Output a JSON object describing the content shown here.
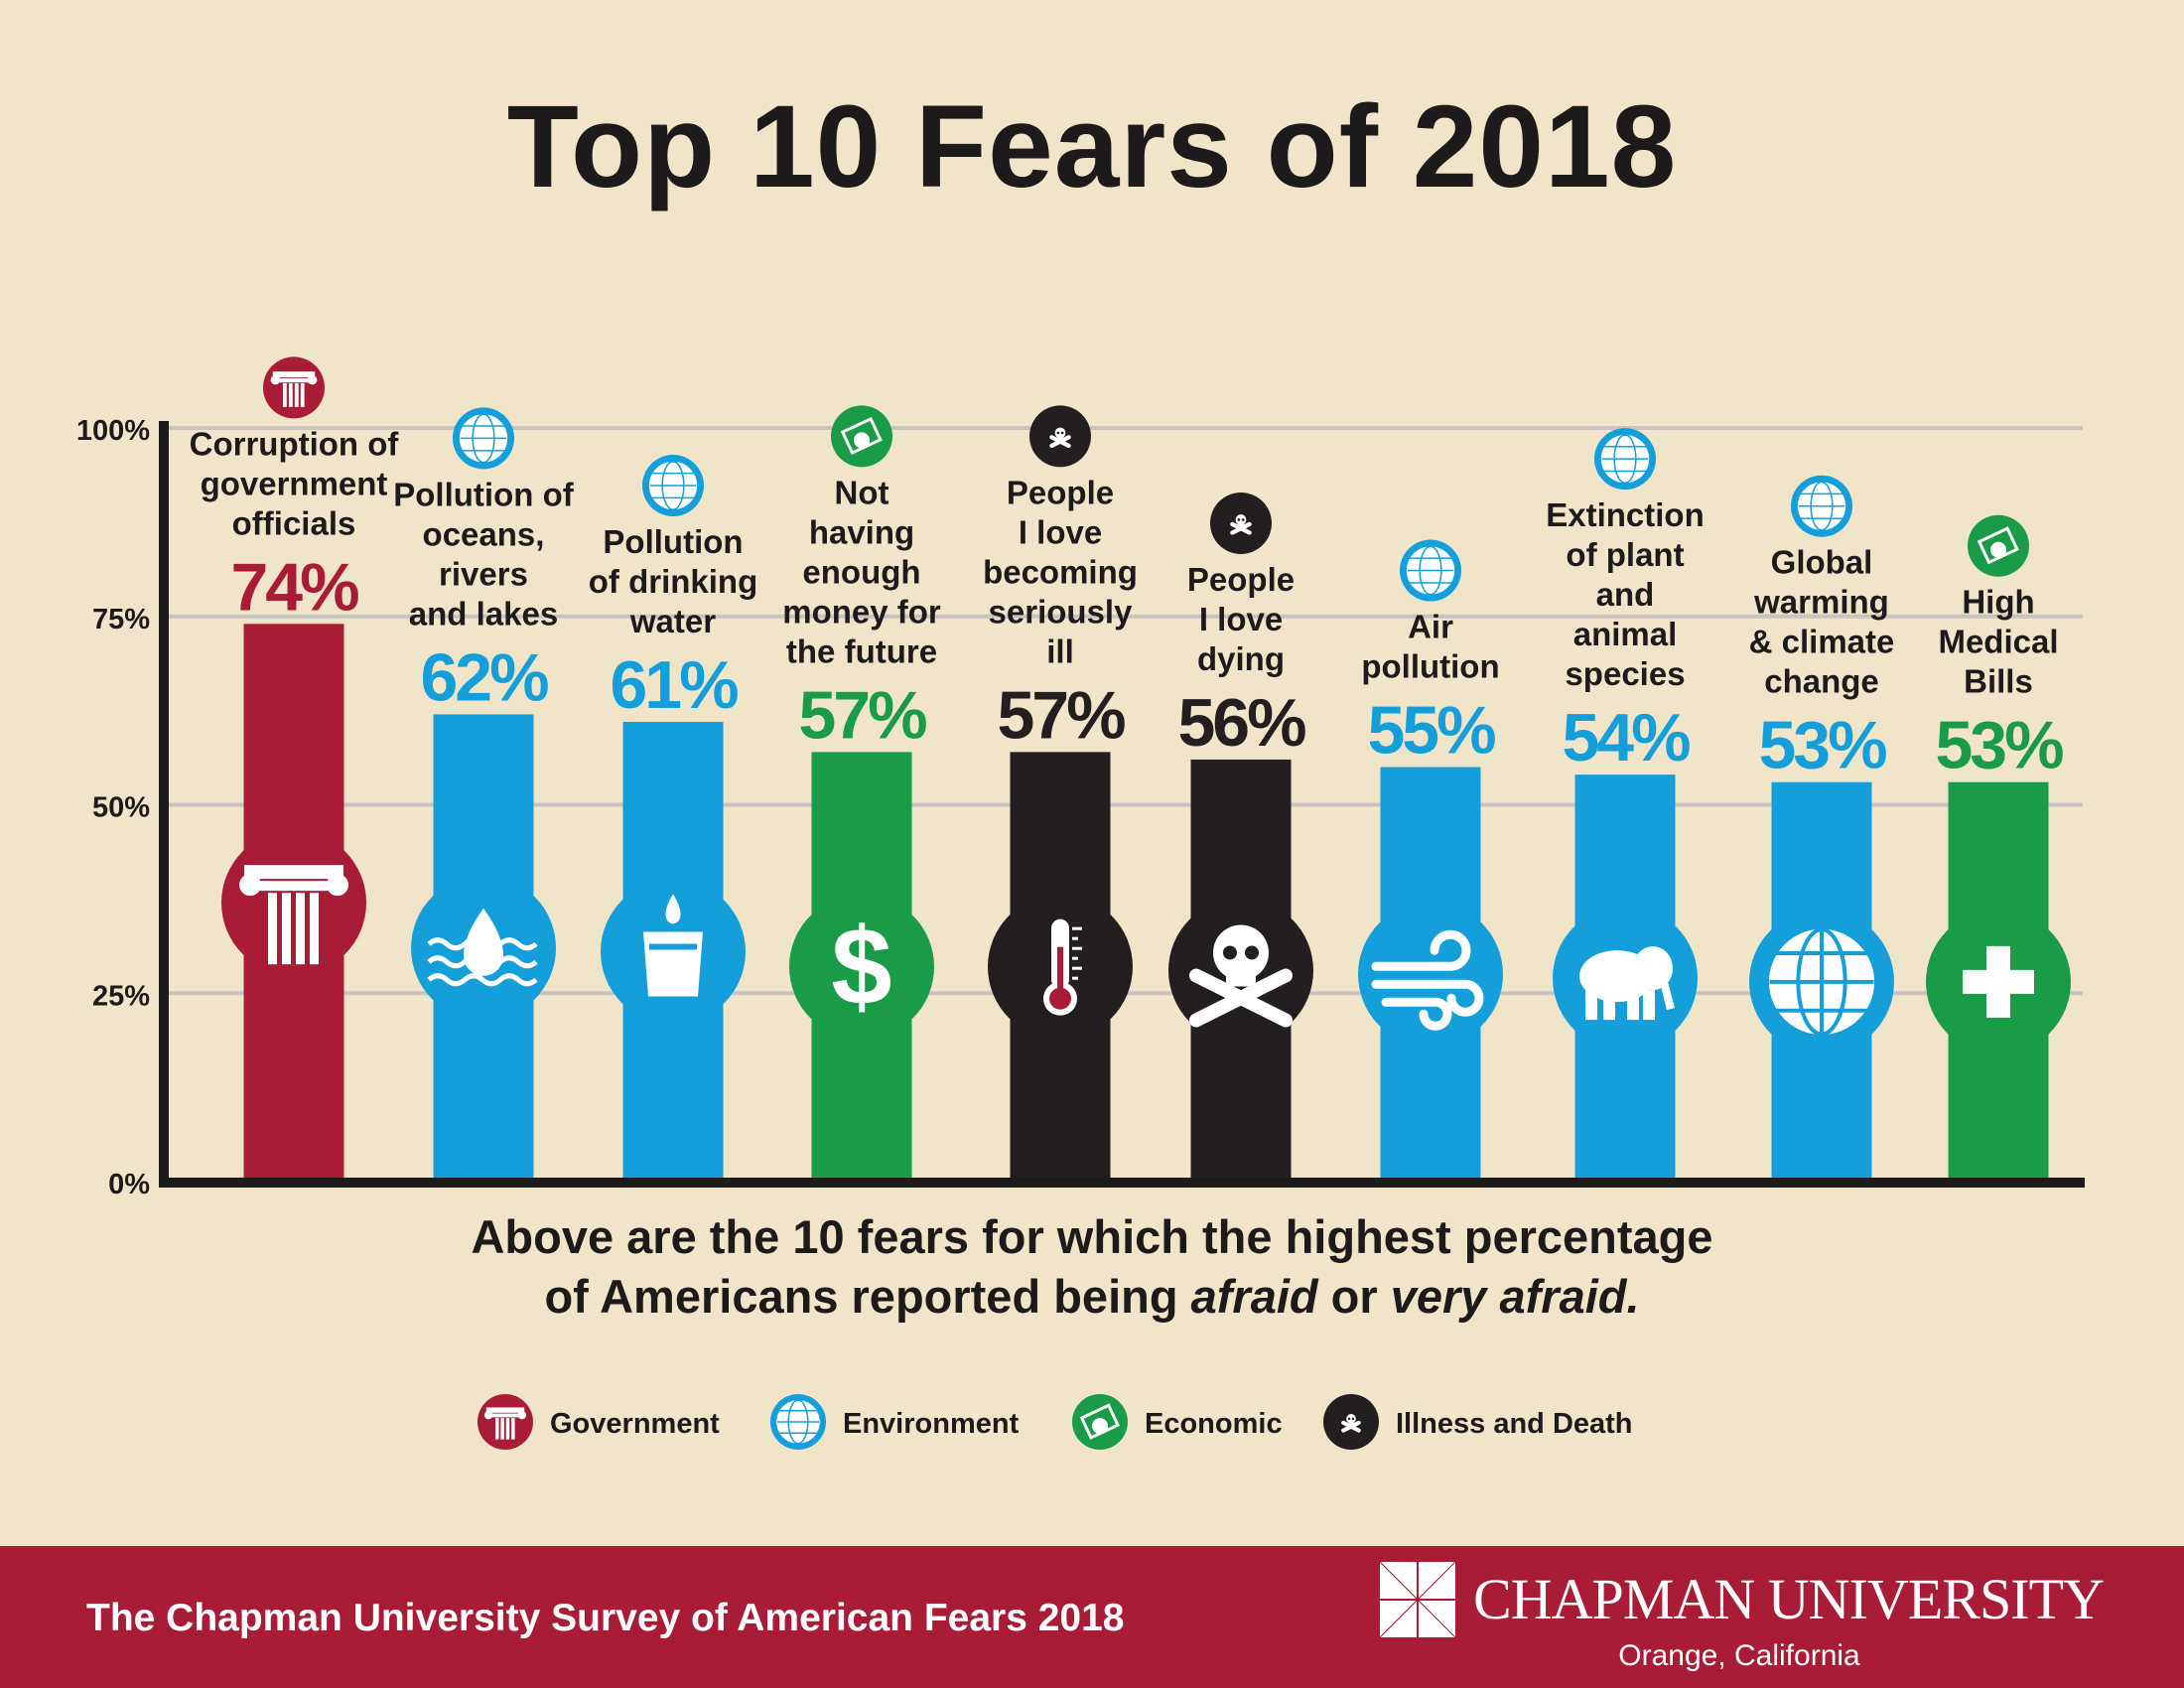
{
  "colors": {
    "background": "#f1e5c9",
    "government": "#a81c36",
    "environment": "#149fda",
    "economic": "#1a9b48",
    "illness": "#231f20",
    "grid": "#c9c4c1",
    "footer": "#a81c36"
  },
  "chart_data": {
    "type": "bar",
    "title": "Top 10 Fears of 2018",
    "ylim": [
      0,
      100
    ],
    "yticks": [
      "0%",
      "25%",
      "50%",
      "75%",
      "100%"
    ],
    "grid": true,
    "legend_placement": "bottom",
    "categories": [
      {
        "label": [
          "Corruption of",
          "government",
          "officials"
        ],
        "value": 74,
        "value_label": "74%",
        "group": "government",
        "icon": "column-icon"
      },
      {
        "label": [
          "Pollution of",
          "oceans,",
          "rivers",
          "and lakes"
        ],
        "value": 62,
        "value_label": "62%",
        "group": "environment",
        "icon": "water-drop-waves-icon"
      },
      {
        "label": [
          "Pollution",
          "of drinking",
          "water"
        ],
        "value": 61,
        "value_label": "61%",
        "group": "environment",
        "icon": "water-glass-icon"
      },
      {
        "label": [
          "Not",
          "having",
          "enough",
          "money for",
          "the future"
        ],
        "value": 57,
        "value_label": "57%",
        "group": "economic",
        "icon": "dollar-icon"
      },
      {
        "label": [
          "People",
          "I love",
          "becoming",
          "seriously",
          "ill"
        ],
        "value": 57,
        "value_label": "57%",
        "group": "illness",
        "icon": "thermometer-icon"
      },
      {
        "label": [
          "People",
          "I love",
          "dying"
        ],
        "value": 56,
        "value_label": "56%",
        "group": "illness",
        "icon": "skull-crossbones-icon"
      },
      {
        "label": [
          "Air",
          "pollution"
        ],
        "value": 55,
        "value_label": "55%",
        "group": "environment",
        "icon": "wind-icon"
      },
      {
        "label": [
          "Extinction",
          "of plant",
          "and",
          "animal",
          "species"
        ],
        "value": 54,
        "value_label": "54%",
        "group": "environment",
        "icon": "elephant-icon"
      },
      {
        "label": [
          "Global",
          "warming",
          "& climate",
          "change"
        ],
        "value": 53,
        "value_label": "53%",
        "group": "environment",
        "icon": "globe-icon"
      },
      {
        "label": [
          "High",
          "Medical",
          "Bills"
        ],
        "value": 53,
        "value_label": "53%",
        "group": "economic",
        "icon": "medical-cross-icon"
      }
    ],
    "legend": [
      {
        "group": "government",
        "label": "Government"
      },
      {
        "group": "environment",
        "label": "Environment"
      },
      {
        "group": "economic",
        "label": "Economic"
      },
      {
        "group": "illness",
        "label": "Illness and Death"
      }
    ]
  },
  "subtitle": {
    "line1": "Above are the 10 fears for which the highest percentage",
    "line2_prefix": "of Americans reported being ",
    "line2_em1": "afraid",
    "line2_mid": " or ",
    "line2_em2": "very afraid."
  },
  "footer": {
    "survey": "The Chapman University Survey of American Fears 2018",
    "university": "CHAPMAN UNIVERSITY",
    "location": "Orange, California"
  }
}
